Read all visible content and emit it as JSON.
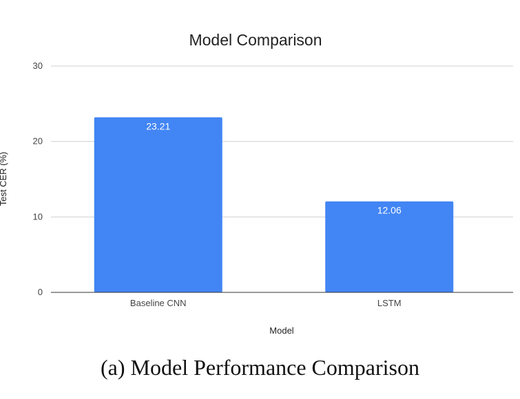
{
  "chart_data": {
    "type": "bar",
    "title": "Model Comparison",
    "xlabel": "Model",
    "ylabel": "Test CER (%)",
    "categories": [
      "Baseline CNN",
      "LSTM"
    ],
    "values": [
      23.21,
      12.06
    ],
    "value_labels": [
      "23.21",
      "12.06"
    ],
    "ylim": [
      0,
      30
    ],
    "yticks": [
      0,
      10,
      20,
      30
    ],
    "grid": true,
    "legend": "none",
    "bar_color": "#4285F4"
  },
  "caption": "(a) Model Performance Comparison"
}
